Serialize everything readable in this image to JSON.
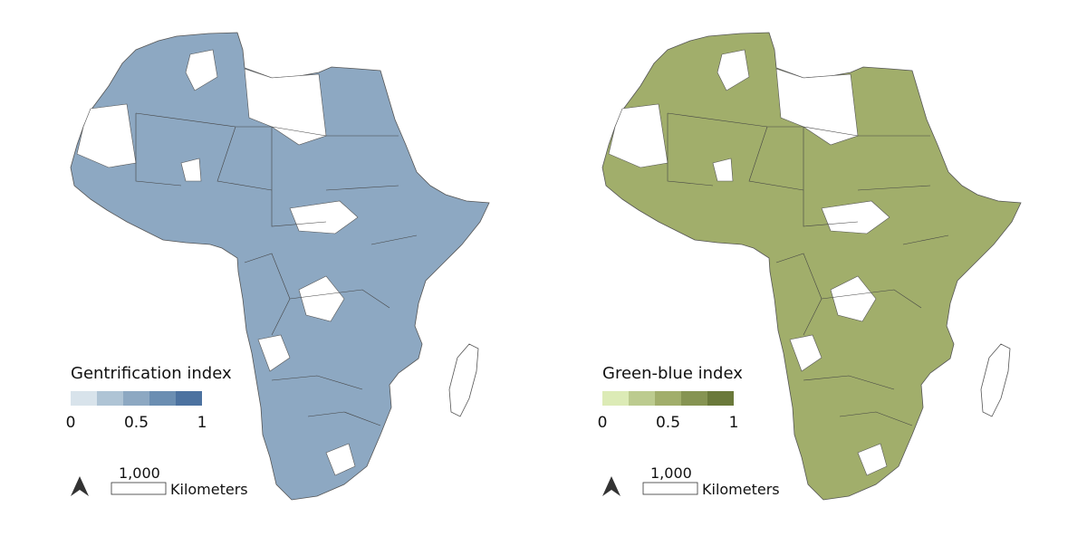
{
  "maps": [
    {
      "legend_title": "Gentrification index",
      "land_color": "#8da8c2",
      "legend_colors": [
        "#d8e3eb",
        "#afc4d5",
        "#8da8c2",
        "#6b8eb2",
        "#4c72a0"
      ],
      "legend_ticks": [
        0,
        0.5,
        1
      ],
      "scale_label": "1,000",
      "scale_unit": "Kilometers"
    },
    {
      "legend_title": "Green-blue index",
      "land_color": "#a1ae6b",
      "legend_colors": [
        "#dcebb6",
        "#bccb8f",
        "#a1ae6b",
        "#869452",
        "#6a793a"
      ],
      "legend_ticks": [
        0,
        0.5,
        1
      ],
      "scale_label": "1,000",
      "scale_unit": "Kilometers"
    }
  ]
}
